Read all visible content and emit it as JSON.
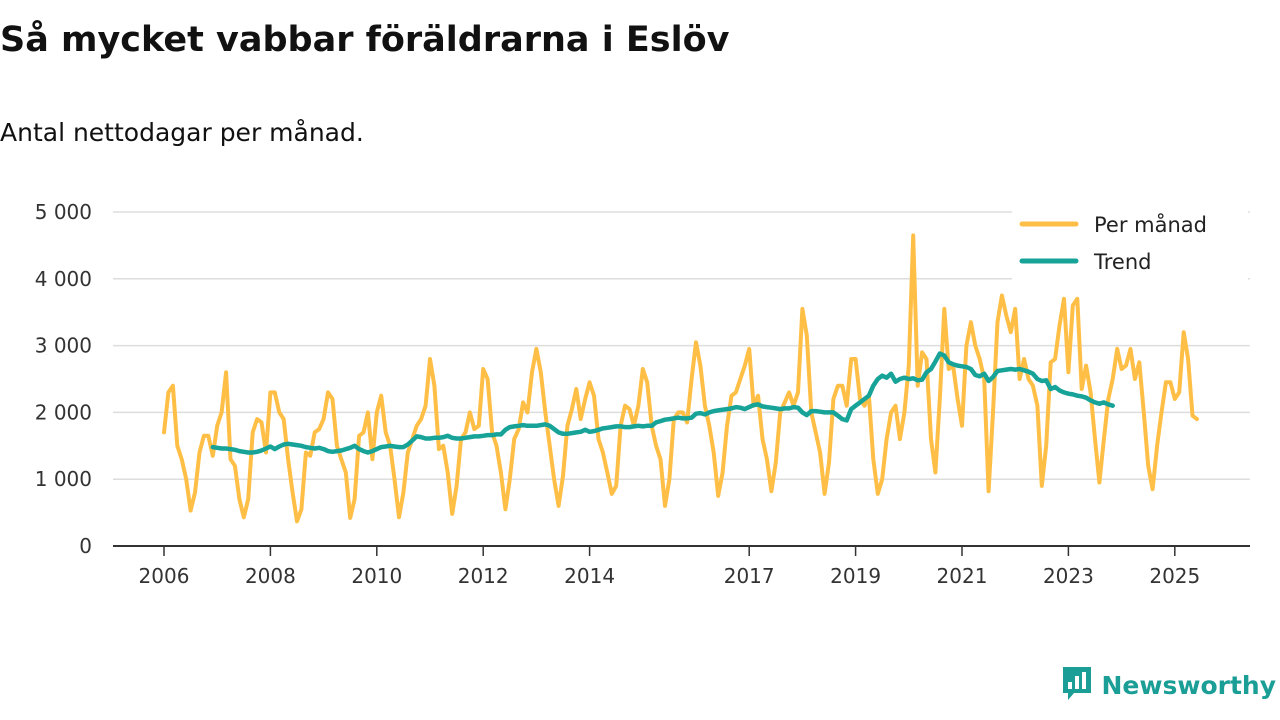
{
  "title": "Så mycket vabbar föräldrarna i Eslöv",
  "subtitle": "Antal nettodagar per månad.",
  "brand": {
    "name": "Newsworthy",
    "icon": "newsworthy-logo-icon"
  },
  "colors": {
    "monthly": "#ffbf47",
    "trend": "#17a398",
    "grid": "#dddddd",
    "axis": "#333333"
  },
  "chart_data": {
    "type": "line",
    "title": "Så mycket vabbar föräldrarna i Eslöv",
    "subtitle": "Antal nettodagar per månad.",
    "xlabel": "",
    "ylabel": "",
    "xlim": [
      2006,
      2026.2
    ],
    "ylim": [
      0,
      5000
    ],
    "y_ticks": [
      0,
      1000,
      2000,
      3000,
      4000,
      5000
    ],
    "y_tick_labels": [
      "0",
      "1 000",
      "2 000",
      "3 000",
      "4 000",
      "5 000"
    ],
    "x_ticks": [
      2006,
      2008,
      2010,
      2012,
      2014,
      2017,
      2019,
      2021,
      2023,
      2025
    ],
    "x_tick_labels": [
      "2006",
      "2008",
      "2010",
      "2012",
      "2014",
      "2017",
      "2019",
      "2021",
      "2023",
      "2025"
    ],
    "grid": true,
    "legend_position": "top-right",
    "x_start": 2006.0,
    "x_step": 0.0833333,
    "series": [
      {
        "name": "Per månad",
        "color": "#ffbf47",
        "values": [
          1700,
          2300,
          2400,
          1500,
          1300,
          1000,
          530,
          800,
          1400,
          1650,
          1650,
          1350,
          1800,
          2000,
          2600,
          1300,
          1200,
          700,
          430,
          700,
          1700,
          1900,
          1850,
          1400,
          2300,
          2300,
          2000,
          1900,
          1300,
          800,
          370,
          550,
          1400,
          1350,
          1700,
          1750,
          1900,
          2300,
          2200,
          1500,
          1300,
          1100,
          420,
          700,
          1650,
          1700,
          2000,
          1300,
          2000,
          2250,
          1700,
          1500,
          1000,
          430,
          800,
          1400,
          1600,
          1800,
          1900,
          2100,
          2800,
          2400,
          1450,
          1500,
          1100,
          480,
          900,
          1600,
          1700,
          2000,
          1750,
          1800,
          2650,
          2500,
          1700,
          1500,
          1100,
          550,
          1000,
          1600,
          1750,
          2150,
          2000,
          2600,
          2950,
          2600,
          2000,
          1500,
          1000,
          600,
          1050,
          1800,
          2050,
          2350,
          1900,
          2200,
          2450,
          2250,
          1600,
          1400,
          1100,
          780,
          900,
          1800,
          2100,
          2050,
          1800,
          2100,
          2650,
          2450,
          1800,
          1500,
          1300,
          600,
          1000,
          1900,
          2000,
          2000,
          1850,
          2500,
          3050,
          2700,
          2100,
          1800,
          1400,
          750,
          1100,
          1800,
          2250,
          2300,
          2500,
          2700,
          2950,
          2100,
          2250,
          1600,
          1300,
          820,
          1250,
          2000,
          2150,
          2300,
          2100,
          2300,
          3550,
          3150,
          2000,
          1700,
          1400,
          780,
          1250,
          2200,
          2400,
          2400,
          2100,
          2800,
          2800,
          2200,
          2100,
          2250,
          1300,
          780,
          1000,
          1600,
          2000,
          2100,
          1600,
          2000,
          2700,
          4650,
          2400,
          2900,
          2800,
          1600,
          1100,
          2200,
          3550,
          2650,
          2700,
          2200,
          1800,
          3000,
          3350,
          3000,
          2800,
          2500,
          820,
          2000,
          3350,
          3750,
          3450,
          3200,
          3550,
          2500,
          2800,
          2500,
          2400,
          2100,
          900,
          1500,
          2750,
          2800,
          3300,
          3700,
          2600,
          3600,
          3700,
          2350,
          2700,
          2300,
          1600,
          950,
          1600,
          2200,
          2500,
          2950,
          2650,
          2700,
          2950,
          2500,
          2750,
          2000,
          1200,
          850,
          1500,
          2000,
          2450,
          2450,
          2200,
          2300,
          3200,
          2800,
          1950,
          1900
        ]
      },
      {
        "name": "Trend",
        "color": "#17a398",
        "x_start": 2006.9167,
        "values": [
          1480,
          1470,
          1460,
          1460,
          1450,
          1440,
          1420,
          1410,
          1400,
          1400,
          1410,
          1430,
          1460,
          1490,
          1450,
          1490,
          1520,
          1530,
          1520,
          1510,
          1500,
          1480,
          1470,
          1460,
          1470,
          1450,
          1420,
          1410,
          1420,
          1430,
          1450,
          1470,
          1500,
          1450,
          1420,
          1400,
          1420,
          1450,
          1480,
          1490,
          1500,
          1490,
          1480,
          1480,
          1520,
          1580,
          1640,
          1630,
          1610,
          1610,
          1620,
          1620,
          1630,
          1650,
          1620,
          1610,
          1610,
          1620,
          1630,
          1640,
          1640,
          1650,
          1660,
          1660,
          1670,
          1670,
          1740,
          1780,
          1790,
          1800,
          1810,
          1800,
          1800,
          1800,
          1810,
          1820,
          1800,
          1750,
          1700,
          1680,
          1680,
          1690,
          1700,
          1710,
          1740,
          1710,
          1720,
          1740,
          1760,
          1770,
          1780,
          1790,
          1790,
          1780,
          1780,
          1790,
          1800,
          1790,
          1800,
          1800,
          1850,
          1870,
          1890,
          1900,
          1910,
          1920,
          1910,
          1910,
          1920,
          1980,
          1990,
          1970,
          2000,
          2020,
          2030,
          2040,
          2050,
          2060,
          2080,
          2070,
          2050,
          2080,
          2110,
          2120,
          2090,
          2080,
          2070,
          2060,
          2050,
          2060,
          2060,
          2080,
          2070,
          2000,
          1960,
          2020,
          2020,
          2010,
          2000,
          2000,
          2000,
          1950,
          1900,
          1880,
          2050,
          2100,
          2150,
          2200,
          2250,
          2400,
          2500,
          2550,
          2520,
          2580,
          2460,
          2500,
          2520,
          2500,
          2510,
          2480,
          2490,
          2600,
          2650,
          2760,
          2880,
          2850,
          2750,
          2720,
          2700,
          2690,
          2680,
          2650,
          2560,
          2540,
          2580,
          2470,
          2530,
          2620,
          2630,
          2640,
          2650,
          2640,
          2650,
          2630,
          2610,
          2580,
          2500,
          2470,
          2480,
          2350,
          2380,
          2330,
          2300,
          2280,
          2270,
          2250,
          2240,
          2220,
          2180,
          2150,
          2130,
          2150,
          2120,
          2100
        ]
      }
    ]
  }
}
